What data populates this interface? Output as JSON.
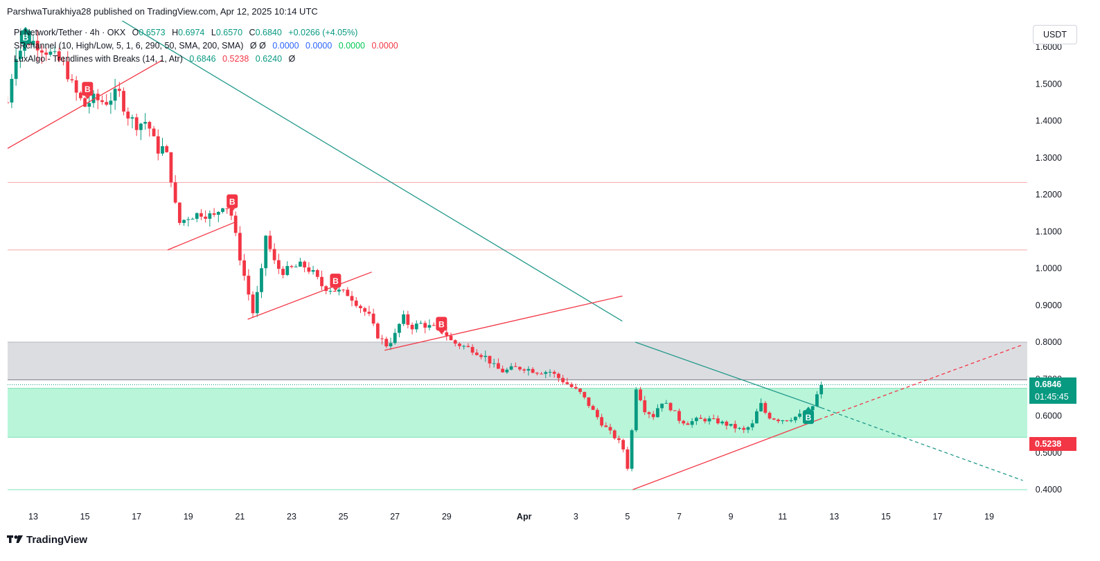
{
  "header": {
    "publisher": "ParshwaTurakhiya28 published on TradingView.com, Apr 12, 2025 10:14 UTC"
  },
  "legend": {
    "symbol": "Pi Network/Tether · 4h · OKX",
    "ohlc": [
      {
        "label": "O",
        "value": "0.6573"
      },
      {
        "label": "H",
        "value": "0.6974"
      },
      {
        "label": "L",
        "value": "0.6570"
      },
      {
        "label": "C",
        "value": "0.6840"
      }
    ],
    "change": "+0.0266 (+4.05%)",
    "indicator1": {
      "name": "SRchannel (10, High/Low, 5, 1, 6, 290, 50, SMA, 200, SMA)",
      "eye": "Ø Ø",
      "values": [
        "0.0000",
        "0.0000",
        "0.0000",
        "0.0000"
      ]
    },
    "indicator2": {
      "name": "LuxAlgo - Trendlines with Breaks (14, 1, Atr)",
      "values": [
        "0.6846",
        "0.5238",
        "0.6240"
      ],
      "eye": "Ø"
    }
  },
  "price_axis": {
    "currency": "USDT",
    "current_price": "0.6846",
    "countdown": "01:45:45",
    "lower_band_price": "0.5238"
  },
  "footer": {
    "brand": "TradingView",
    "logo_icon": "tradingview-logo-icon"
  },
  "colors": {
    "up": "#089981",
    "down": "#f23645",
    "zone_gray": "#d1d4dc",
    "zone_green": "#b2f5d8",
    "teal_line": "#22998a"
  },
  "chart_data": {
    "type": "candlestick",
    "timeframe": "4h",
    "y_ticks": [
      0.4,
      0.5,
      0.6,
      0.7,
      0.8,
      0.9,
      1.0,
      1.1,
      1.2,
      1.3,
      1.4,
      1.5,
      1.6
    ],
    "y_tick_labels": [
      "0.4000",
      "0.5000",
      "0.6000",
      "0.7000",
      "0.8000",
      "0.9000",
      "1.0000",
      "1.1000",
      "1.2000",
      "1.3000",
      "1.4000",
      "1.5000",
      "1.6000"
    ],
    "ylim": [
      0.35,
      1.65
    ],
    "x_day_start": "Mar 12",
    "x_tick_labels": [
      {
        "day": 1,
        "label": "13"
      },
      {
        "day": 3,
        "label": "15"
      },
      {
        "day": 5,
        "label": "17"
      },
      {
        "day": 7,
        "label": "19"
      },
      {
        "day": 9,
        "label": "21"
      },
      {
        "day": 11,
        "label": "23"
      },
      {
        "day": 13,
        "label": "25"
      },
      {
        "day": 15,
        "label": "27"
      },
      {
        "day": 17,
        "label": "29"
      },
      {
        "day": 20,
        "label": "Apr"
      },
      {
        "day": 22,
        "label": "3"
      },
      {
        "day": 24,
        "label": "5"
      },
      {
        "day": 26,
        "label": "7"
      },
      {
        "day": 28,
        "label": "9"
      },
      {
        "day": 30,
        "label": "11"
      },
      {
        "day": 32,
        "label": "13"
      },
      {
        "day": 34,
        "label": "15"
      },
      {
        "day": 36,
        "label": "17"
      },
      {
        "day": 38,
        "label": "19"
      }
    ],
    "anchors": [
      [
        0.0,
        1.45
      ],
      [
        0.3,
        1.58
      ],
      [
        0.6,
        1.6
      ],
      [
        0.9,
        1.62
      ],
      [
        1.3,
        1.6
      ],
      [
        1.7,
        1.58
      ],
      [
        2.2,
        1.55
      ],
      [
        2.6,
        1.48
      ],
      [
        3.0,
        1.44
      ],
      [
        3.3,
        1.46
      ],
      [
        3.8,
        1.45
      ],
      [
        4.3,
        1.48
      ],
      [
        4.6,
        1.42
      ],
      [
        5.0,
        1.39
      ],
      [
        5.4,
        1.4
      ],
      [
        5.8,
        1.32
      ],
      [
        6.1,
        1.33
      ],
      [
        6.4,
        1.22
      ],
      [
        6.6,
        1.12
      ],
      [
        7.0,
        1.14
      ],
      [
        7.5,
        1.15
      ],
      [
        8.0,
        1.14
      ],
      [
        8.4,
        1.18
      ],
      [
        8.7,
        1.14
      ],
      [
        8.9,
        1.06
      ],
      [
        9.2,
        0.97
      ],
      [
        9.5,
        0.88
      ],
      [
        9.8,
        0.97
      ],
      [
        10.0,
        1.09
      ],
      [
        10.3,
        1.02
      ],
      [
        10.6,
        0.99
      ],
      [
        11.0,
        1.0
      ],
      [
        11.4,
        1.01
      ],
      [
        11.8,
        0.99
      ],
      [
        12.2,
        0.95
      ],
      [
        12.7,
        0.94
      ],
      [
        13.2,
        0.93
      ],
      [
        13.6,
        0.9
      ],
      [
        14.0,
        0.87
      ],
      [
        14.3,
        0.82
      ],
      [
        14.7,
        0.79
      ],
      [
        15.0,
        0.82
      ],
      [
        15.3,
        0.87
      ],
      [
        15.6,
        0.84
      ],
      [
        16.0,
        0.85
      ],
      [
        16.4,
        0.84
      ],
      [
        16.9,
        0.83
      ],
      [
        17.2,
        0.8
      ],
      [
        17.6,
        0.79
      ],
      [
        18.0,
        0.78
      ],
      [
        18.5,
        0.76
      ],
      [
        18.9,
        0.73
      ],
      [
        19.2,
        0.72
      ],
      [
        19.6,
        0.73
      ],
      [
        20.0,
        0.73
      ],
      [
        20.5,
        0.72
      ],
      [
        21.0,
        0.72
      ],
      [
        21.4,
        0.7
      ],
      [
        21.8,
        0.68
      ],
      [
        22.2,
        0.66
      ],
      [
        22.6,
        0.62
      ],
      [
        23.0,
        0.58
      ],
      [
        23.4,
        0.55
      ],
      [
        23.8,
        0.52
      ],
      [
        24.0,
        0.46
      ],
      [
        24.2,
        0.58
      ],
      [
        24.35,
        0.69
      ],
      [
        24.6,
        0.62
      ],
      [
        25.0,
        0.6
      ],
      [
        25.3,
        0.64
      ],
      [
        25.7,
        0.62
      ],
      [
        26.0,
        0.59
      ],
      [
        26.3,
        0.58
      ],
      [
        26.7,
        0.59
      ],
      [
        27.2,
        0.59
      ],
      [
        27.7,
        0.58
      ],
      [
        28.1,
        0.57
      ],
      [
        28.5,
        0.56
      ],
      [
        28.9,
        0.58
      ],
      [
        29.1,
        0.64
      ],
      [
        29.4,
        0.6
      ],
      [
        29.8,
        0.59
      ],
      [
        30.2,
        0.59
      ],
      [
        30.6,
        0.6
      ],
      [
        31.0,
        0.61
      ],
      [
        31.2,
        0.63
      ],
      [
        31.4,
        0.67
      ],
      [
        31.55,
        0.684
      ]
    ],
    "zones": [
      {
        "name": "resistance-zone",
        "from": 0.698,
        "to": 0.8,
        "color": "gray"
      },
      {
        "name": "support-zone",
        "from": 0.542,
        "to": 0.675,
        "color": "green"
      }
    ],
    "horizontal_lines": [
      {
        "name": "resistance-line-1.23",
        "y": 1.233
      },
      {
        "name": "resistance-line-1.05",
        "y": 1.05
      },
      {
        "name": "support-line-0.40",
        "y": 0.4
      }
    ],
    "trendlines": [
      {
        "name": "main-downtrend",
        "color": "teal",
        "from": [
          4.0,
          1.69
        ],
        "to": [
          23.8,
          0.857
        ],
        "dash": false
      },
      {
        "name": "lower-high-trendline",
        "color": "teal",
        "from": [
          24.3,
          0.8
        ],
        "to": [
          31.5,
          0.622
        ],
        "dash": false
      },
      {
        "name": "lower-high-extension",
        "color": "teal",
        "from": [
          31.5,
          0.622
        ],
        "to": [
          39.3,
          0.425
        ],
        "dash": true
      },
      {
        "name": "support-trend-1",
        "color": "red",
        "from": [
          0.0,
          1.325
        ],
        "to": [
          6.0,
          1.565
        ],
        "dash": false
      },
      {
        "name": "support-trend-2",
        "color": "red",
        "from": [
          6.2,
          1.05
        ],
        "to": [
          8.8,
          1.125
        ],
        "dash": false
      },
      {
        "name": "support-trend-3",
        "color": "red",
        "from": [
          9.3,
          0.862
        ],
        "to": [
          14.1,
          0.99
        ],
        "dash": false
      },
      {
        "name": "support-trend-4",
        "color": "red",
        "from": [
          14.6,
          0.778
        ],
        "to": [
          23.8,
          0.925
        ],
        "dash": false
      },
      {
        "name": "rising-support",
        "color": "red",
        "from": [
          24.2,
          0.4
        ],
        "to": [
          31.4,
          0.59
        ],
        "dash": false
      },
      {
        "name": "rising-support-extension",
        "color": "red",
        "from": [
          31.4,
          0.59
        ],
        "to": [
          39.3,
          0.793
        ],
        "dash": true
      }
    ],
    "break_markers": [
      {
        "label": "B",
        "day": 0.7,
        "price": 1.625,
        "kind": "up"
      },
      {
        "label": "B",
        "day": 3.1,
        "price": 1.485,
        "kind": "down"
      },
      {
        "label": "B",
        "day": 8.7,
        "price": 1.18,
        "kind": "down"
      },
      {
        "label": "B",
        "day": 12.7,
        "price": 0.965,
        "kind": "down"
      },
      {
        "label": "B",
        "day": 16.8,
        "price": 0.848,
        "kind": "down"
      },
      {
        "label": "B",
        "day": 31.0,
        "price": 0.595,
        "kind": "up"
      }
    ]
  }
}
